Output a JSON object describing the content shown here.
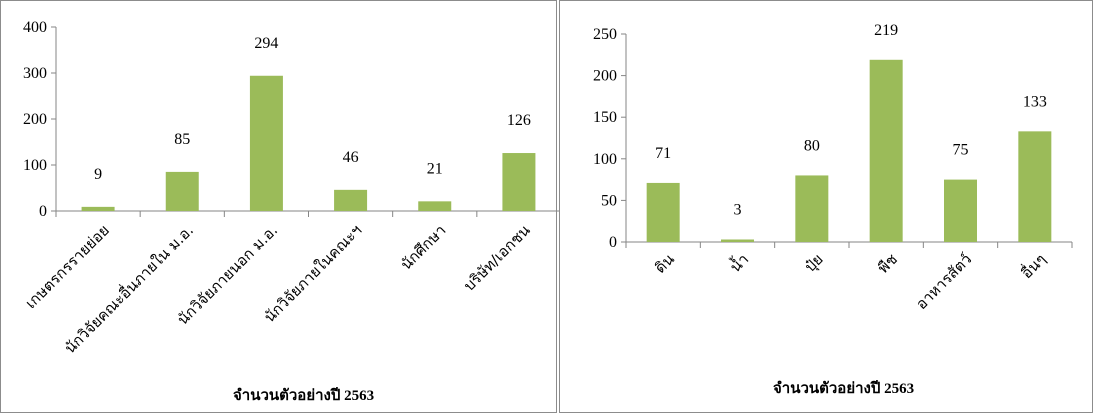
{
  "chart_data": [
    {
      "type": "bar",
      "categories": [
        "เกษตรกรรายย่อย",
        "นักวิจัยคณะอื่นภายใน ม.อ.",
        "นักวิจัยภายนอก ม.อ.",
        "นักวิจัยภายในคณะฯ",
        "นักศึกษา",
        "บริษัท/เอกชน"
      ],
      "values": [
        9,
        85,
        294,
        46,
        21,
        126
      ],
      "ylim": [
        0,
        400
      ],
      "yticks": [
        0,
        100,
        200,
        300,
        400
      ],
      "caption": "จำนวนตัวอย่างปี 2563",
      "bar_color": "#9bbb59",
      "grid": false,
      "legend": "none"
    },
    {
      "type": "bar",
      "categories": [
        "ดิน",
        "น้ำ",
        "ปุ๋ย",
        "พืช",
        "อาหารสัตว์",
        "อื่นๆ"
      ],
      "values": [
        71,
        3,
        80,
        219,
        75,
        133
      ],
      "ylim": [
        0,
        250
      ],
      "yticks": [
        0,
        50,
        100,
        150,
        200,
        250
      ],
      "caption": "จำนวนตัวอย่างปี 2563",
      "bar_color": "#9bbb59",
      "grid": false,
      "legend": "none"
    }
  ]
}
